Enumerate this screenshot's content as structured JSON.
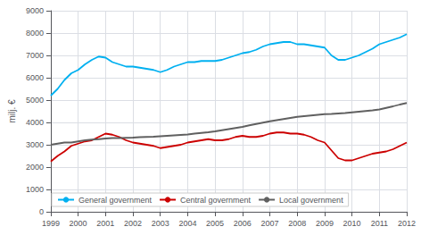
{
  "chart_data": {
    "type": "line",
    "y_label": "milj. €",
    "x": [
      1999,
      1999.25,
      1999.5,
      1999.75,
      2000,
      2000.25,
      2000.5,
      2000.75,
      2001,
      2001.25,
      2001.5,
      2001.75,
      2002,
      2002.25,
      2002.5,
      2002.75,
      2003,
      2003.25,
      2003.5,
      2003.75,
      2004,
      2004.25,
      2004.5,
      2004.75,
      2005,
      2005.25,
      2005.5,
      2005.75,
      2006,
      2006.25,
      2006.5,
      2006.75,
      2007,
      2007.25,
      2007.5,
      2007.75,
      2008,
      2008.25,
      2008.5,
      2008.75,
      2009,
      2009.25,
      2009.5,
      2009.75,
      2010,
      2010.25,
      2010.5,
      2010.75,
      2011,
      2011.25,
      2011.5,
      2011.75,
      2012
    ],
    "series": [
      {
        "name": "General government",
        "color": "#00b0f0",
        "values": [
          5200,
          5500,
          5900,
          6200,
          6350,
          6600,
          6800,
          6950,
          6900,
          6700,
          6600,
          6500,
          6500,
          6450,
          6400,
          6350,
          6250,
          6350,
          6500,
          6600,
          6700,
          6700,
          6750,
          6750,
          6750,
          6800,
          6900,
          7000,
          7100,
          7150,
          7250,
          7400,
          7500,
          7550,
          7600,
          7600,
          7500,
          7500,
          7450,
          7400,
          7350,
          7000,
          6800,
          6800,
          6900,
          7000,
          7150,
          7300,
          7500,
          7600,
          7700,
          7800,
          7950
        ]
      },
      {
        "name": "Central government",
        "color": "#cc0000",
        "values": [
          2250,
          2500,
          2700,
          2950,
          3050,
          3150,
          3200,
          3350,
          3500,
          3450,
          3350,
          3200,
          3100,
          3050,
          3000,
          2950,
          2850,
          2900,
          2950,
          3000,
          3100,
          3150,
          3200,
          3250,
          3200,
          3200,
          3250,
          3350,
          3400,
          3350,
          3350,
          3400,
          3500,
          3550,
          3550,
          3500,
          3500,
          3450,
          3350,
          3200,
          3100,
          2750,
          2400,
          2300,
          2300,
          2400,
          2500,
          2600,
          2650,
          2700,
          2800,
          2950,
          3100
        ]
      },
      {
        "name": "Local government",
        "color": "#606060",
        "values": [
          3000,
          3050,
          3100,
          3100,
          3150,
          3200,
          3230,
          3250,
          3280,
          3300,
          3300,
          3310,
          3320,
          3340,
          3350,
          3360,
          3380,
          3400,
          3420,
          3440,
          3460,
          3500,
          3530,
          3560,
          3600,
          3650,
          3700,
          3750,
          3800,
          3870,
          3930,
          3990,
          4050,
          4100,
          4150,
          4200,
          4250,
          4280,
          4310,
          4340,
          4370,
          4380,
          4400,
          4420,
          4450,
          4480,
          4510,
          4540,
          4580,
          4650,
          4720,
          4800,
          4870
        ]
      }
    ],
    "xlim": [
      1999,
      2012
    ],
    "xticks": [
      1999,
      2000,
      2001,
      2002,
      2003,
      2004,
      2005,
      2006,
      2007,
      2008,
      2009,
      2010,
      2011,
      2012
    ],
    "ylim": [
      0,
      9000
    ],
    "yticks": [
      0,
      1000,
      2000,
      3000,
      4000,
      5000,
      6000,
      7000,
      8000,
      9000
    ],
    "grid": true,
    "legend": "lower left"
  }
}
